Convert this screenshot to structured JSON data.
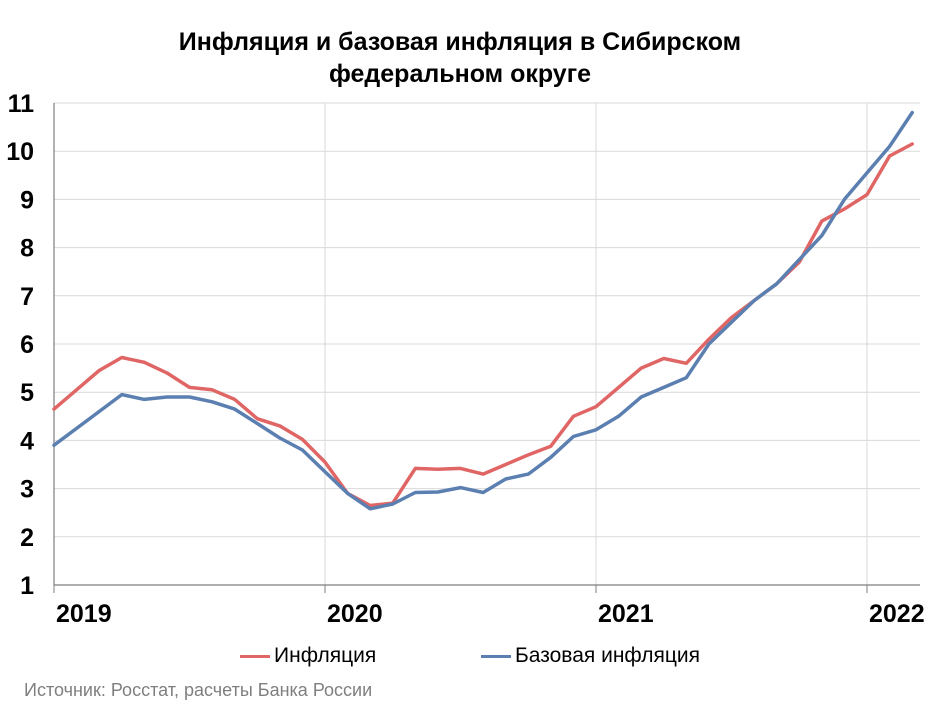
{
  "title_line1": "Инфляция и базовая инфляция в Сибирском",
  "title_line2": "федеральном округе",
  "source": "Источник: Росстат, расчеты Банка России",
  "chart_data": {
    "type": "line",
    "title": "Инфляция и базовая инфляция в Сибирском федеральном округе",
    "xlabel": "",
    "ylabel": "",
    "ylim": [
      1,
      11
    ],
    "yticks": [
      1,
      2,
      3,
      4,
      5,
      6,
      7,
      8,
      9,
      10,
      11
    ],
    "xticks": [
      "2019",
      "2020",
      "2021",
      "2022"
    ],
    "grid": true,
    "legend_position": "bottom",
    "x": [
      "2019-01",
      "2019-02",
      "2019-03",
      "2019-04",
      "2019-05",
      "2019-06",
      "2019-07",
      "2019-08",
      "2019-09",
      "2019-10",
      "2019-11",
      "2019-12",
      "2020-01",
      "2020-02",
      "2020-03",
      "2020-04",
      "2020-05",
      "2020-06",
      "2020-07",
      "2020-08",
      "2020-09",
      "2020-10",
      "2020-11",
      "2020-12",
      "2021-01",
      "2021-02",
      "2021-03",
      "2021-04",
      "2021-05",
      "2021-06",
      "2021-07",
      "2021-08",
      "2021-09",
      "2021-10",
      "2021-11",
      "2021-12",
      "2022-01",
      "2022-02",
      "2022-03"
    ],
    "series": [
      {
        "name": "Инфляция",
        "color": "#e06666",
        "values": [
          4.65,
          5.05,
          5.45,
          5.72,
          5.62,
          5.4,
          5.1,
          5.05,
          4.85,
          4.45,
          4.3,
          4.02,
          3.55,
          2.9,
          2.65,
          2.7,
          3.42,
          3.4,
          3.42,
          3.3,
          3.5,
          3.7,
          3.88,
          4.5,
          4.7,
          5.1,
          5.5,
          5.7,
          5.6,
          6.1,
          6.55,
          6.9,
          7.25,
          7.7,
          8.55,
          8.8,
          9.1,
          9.9,
          10.15
        ]
      },
      {
        "name": "Базовая инфляция",
        "color": "#5b7fb0",
        "values": [
          3.9,
          4.25,
          4.6,
          4.95,
          4.85,
          4.9,
          4.9,
          4.8,
          4.65,
          4.35,
          4.05,
          3.8,
          3.35,
          2.9,
          2.58,
          2.68,
          2.92,
          2.93,
          3.02,
          2.92,
          3.2,
          3.3,
          3.65,
          4.08,
          4.22,
          4.5,
          4.9,
          5.1,
          5.3,
          6.0,
          6.45,
          6.9,
          7.25,
          7.75,
          8.25,
          9.0,
          9.55,
          10.1,
          10.8
        ]
      }
    ]
  }
}
